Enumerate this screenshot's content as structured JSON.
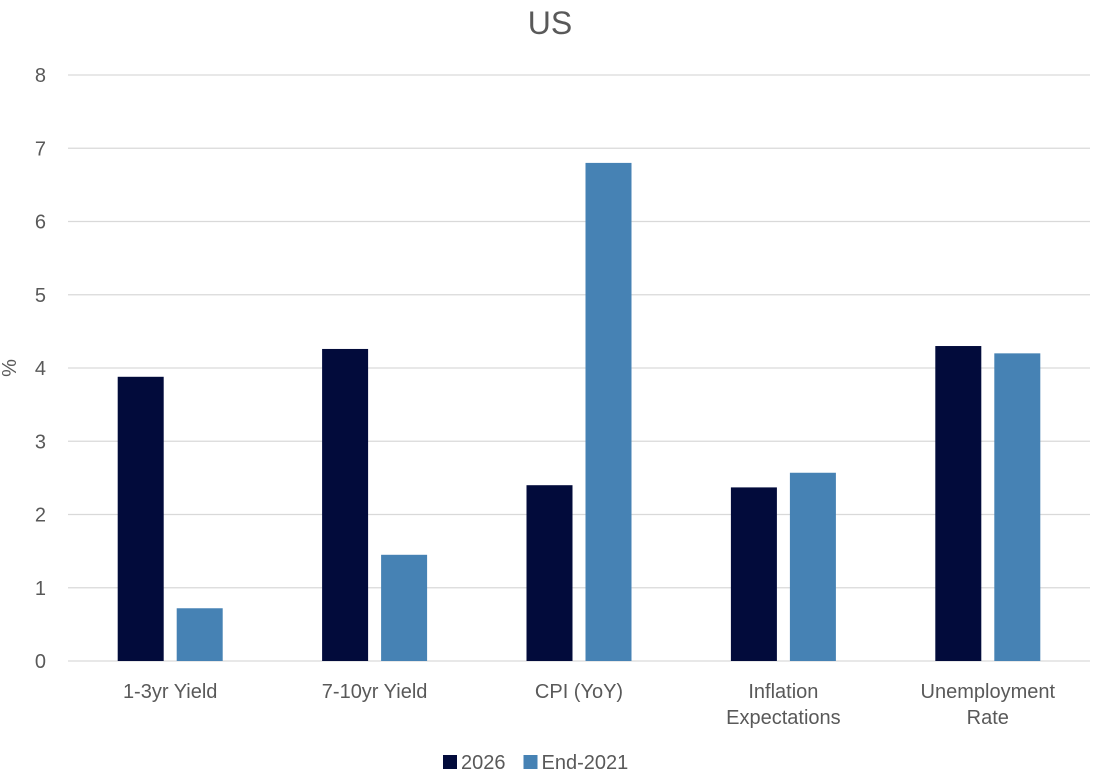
{
  "chart_data": {
    "type": "bar",
    "title": "US",
    "xlabel": "",
    "ylabel": "%",
    "ylim": [
      0,
      8
    ],
    "yticks": [
      0,
      1,
      2,
      3,
      4,
      5,
      6,
      7,
      8
    ],
    "grid": true,
    "legend_position": "bottom",
    "categories": [
      [
        "1-3yr Yield"
      ],
      [
        "7-10yr Yield"
      ],
      [
        "CPI (YoY)"
      ],
      [
        "Inflation",
        "Expectations"
      ],
      [
        "Unemployment",
        "Rate"
      ]
    ],
    "series": [
      {
        "name": "2026",
        "color": "#020B3B",
        "values": [
          3.88,
          4.26,
          2.4,
          2.37,
          4.3
        ]
      },
      {
        "name": "End-2021",
        "color": "#4682B4",
        "values": [
          0.72,
          1.45,
          6.8,
          2.57,
          4.2
        ]
      }
    ]
  }
}
